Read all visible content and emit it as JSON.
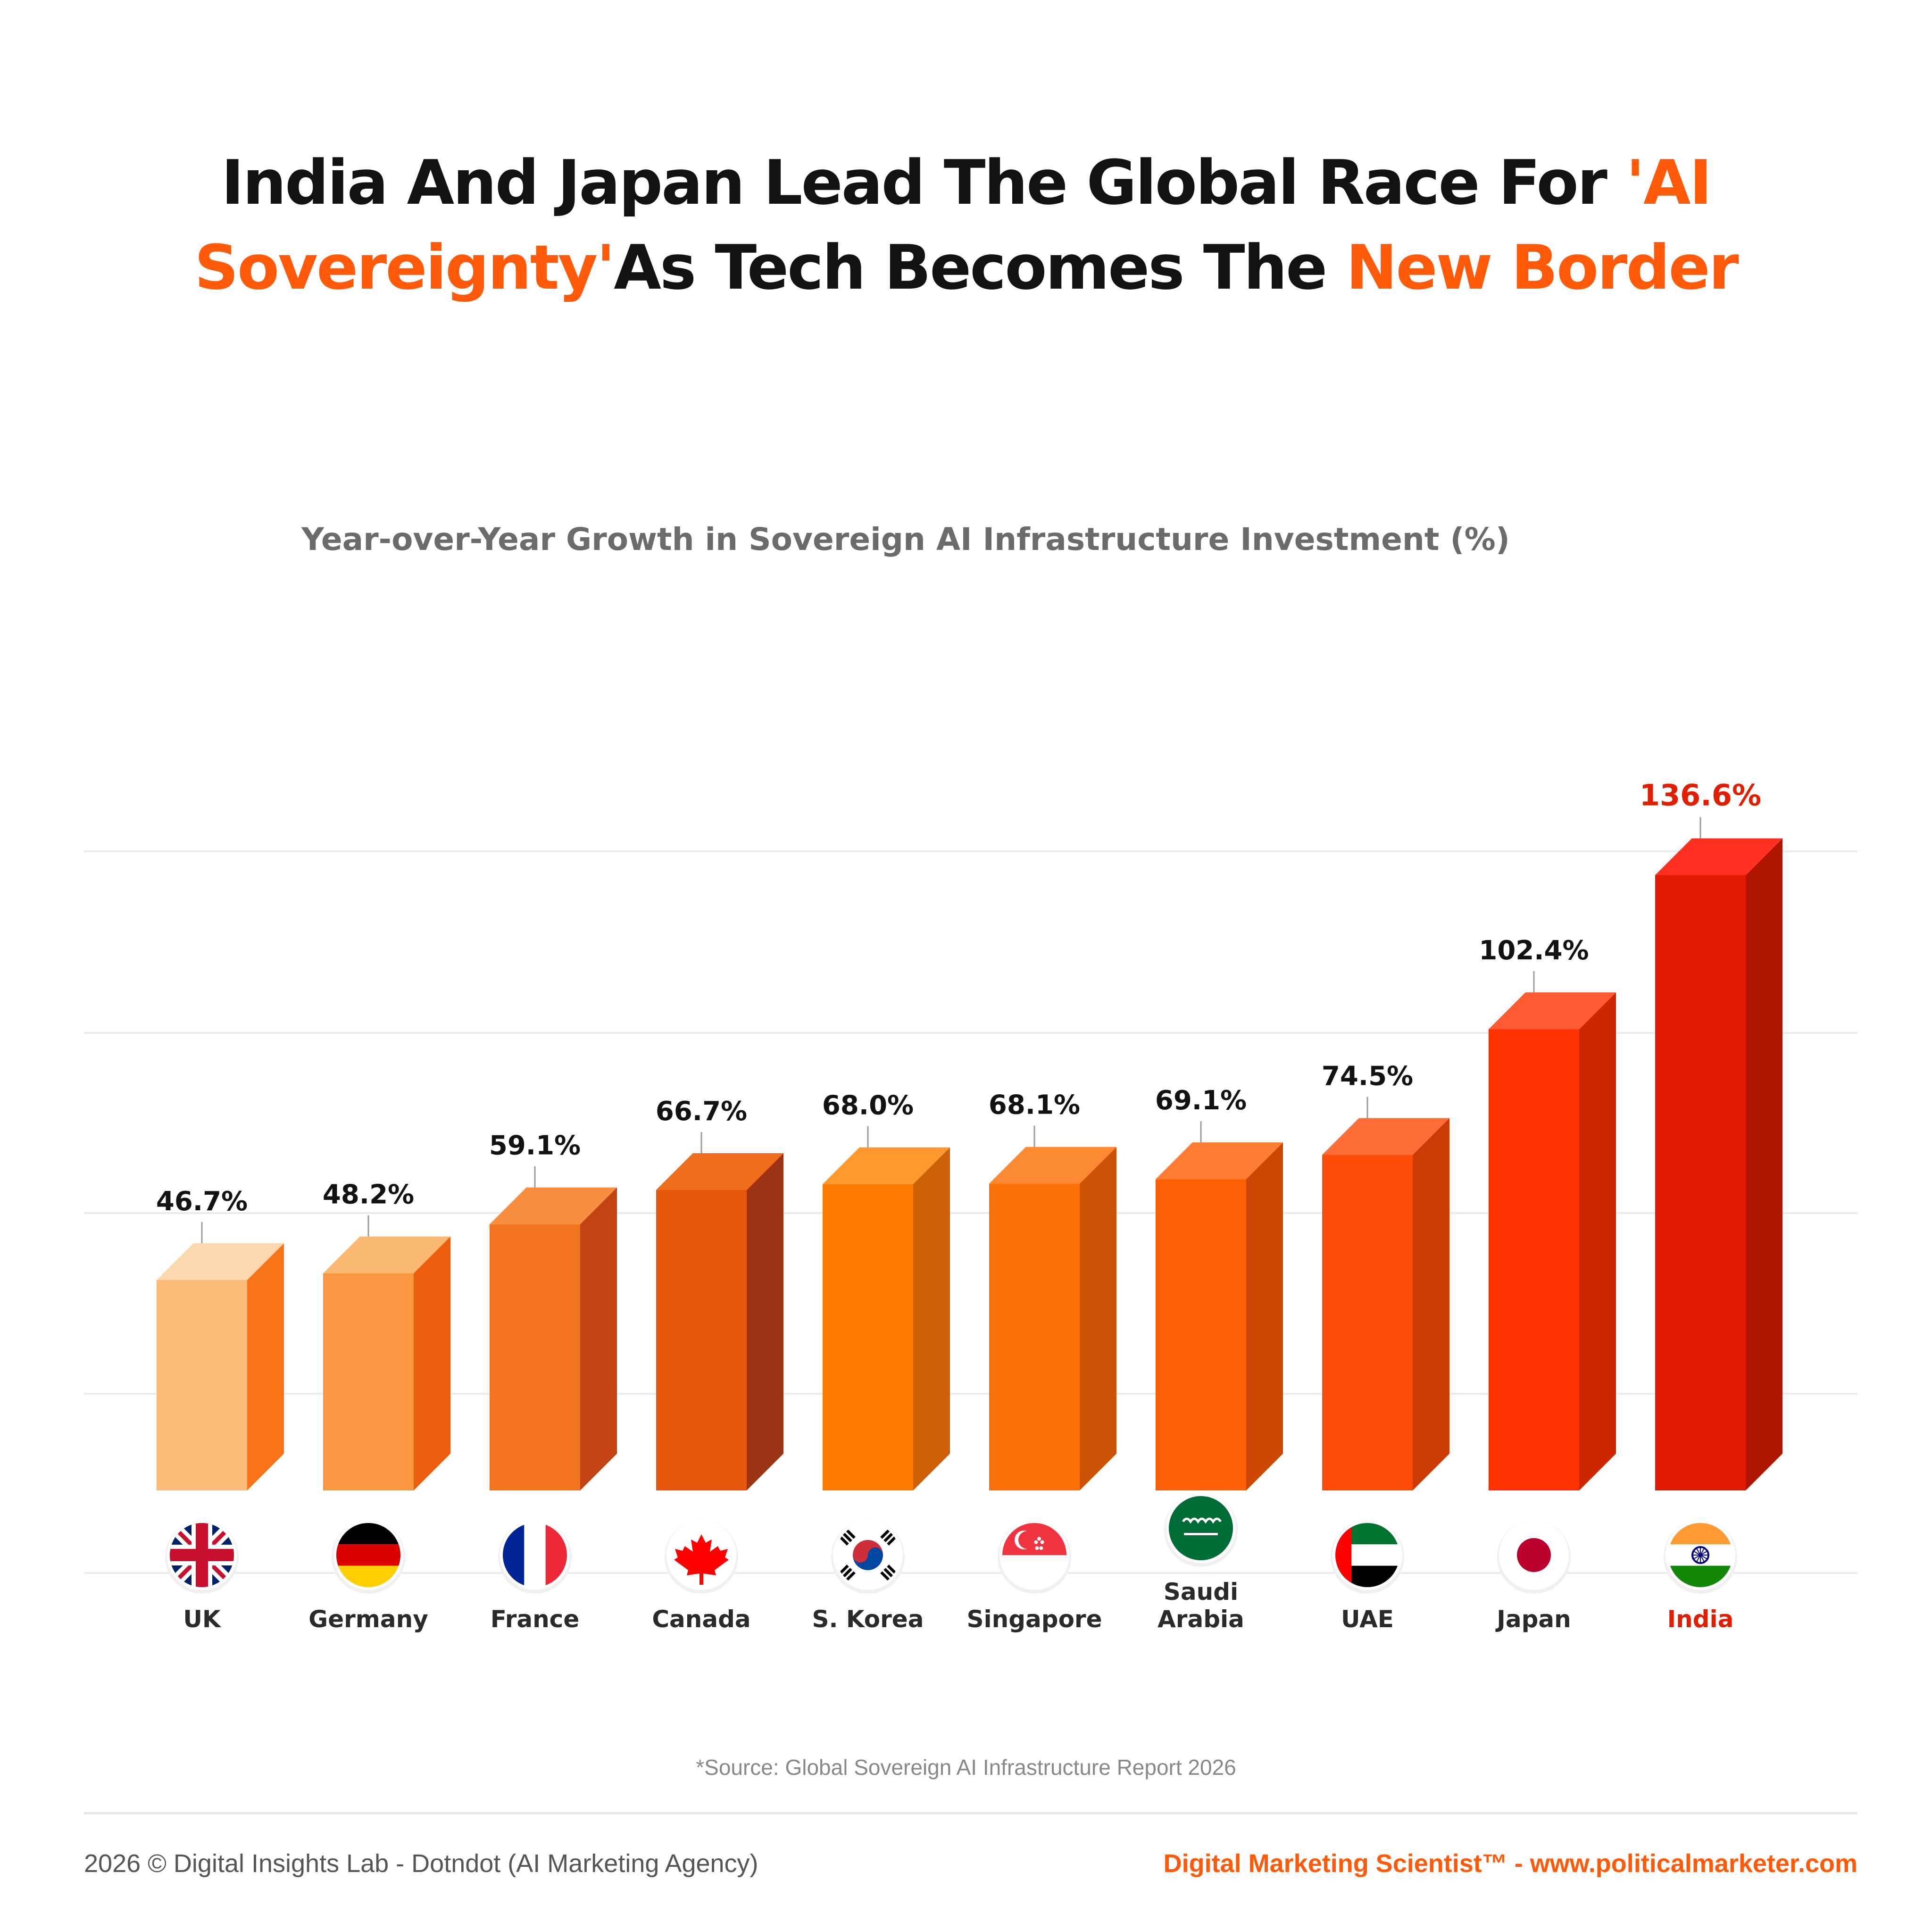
{
  "headline": {
    "line1_text": "India And Japan Lead The Global Race For ",
    "line1_highlight": "'AI",
    "line2_highlight": "Sovereignty'",
    "line2_text": "As Tech Becomes The ",
    "line2_highlight_end": "New Border"
  },
  "source": "*Source: Global Sovereign AI Infrastructure Report 2026",
  "footer": {
    "left": "2026 © Digital Insights Lab - Dotndot (AI Marketing Agency)",
    "right": "Digital Marketing Scientist™ - www.politicalmarketer.com"
  },
  "colors": {
    "accent": "#ff5a0a",
    "india_label": "#e01e00",
    "title_text": "#121212"
  },
  "chart_data": {
    "type": "bar",
    "title": "Year-over-Year Growth in Sovereign AI Infrastructure Investment (%)",
    "xlabel": "",
    "ylabel": "",
    "ylim": [
      0,
      140
    ],
    "grid": true,
    "categories": [
      "UK",
      "Germany",
      "France",
      "Canada",
      "S. Korea",
      "Singapore",
      "Saudi\nArabia",
      "UAE",
      "Japan",
      "India"
    ],
    "values": [
      46.7,
      48.2,
      59.1,
      66.7,
      68.0,
      68.1,
      69.1,
      74.5,
      102.4,
      136.6
    ],
    "value_labels": [
      "46.7%",
      "48.2%",
      "59.1%",
      "66.7%",
      "68.0%",
      "68.1%",
      "69.1%",
      "74.5%",
      "102.4%",
      "136.6%"
    ],
    "flag_icons": [
      "uk-flag-icon",
      "germany-flag-icon",
      "france-flag-icon",
      "canada-flag-icon",
      "south-korea-flag-icon",
      "singapore-flag-icon",
      "saudi-arabia-flag-icon",
      "uae-flag-icon",
      "japan-flag-icon",
      "india-flag-icon"
    ],
    "bar_colors": [
      {
        "front": "#fbbb78",
        "side": "#f97518",
        "top": "#fdd8ae"
      },
      {
        "front": "#f9963f",
        "side": "#ec5e0e",
        "top": "#fbb870"
      },
      {
        "front": "#f3741f",
        "side": "#c44312",
        "top": "#f78e40"
      },
      {
        "front": "#e8560e",
        "side": "#9b3415",
        "top": "#ef6d1c"
      },
      {
        "front": "#ff7a00",
        "side": "#cd5f07",
        "top": "#fe9930"
      },
      {
        "front": "#fd7008",
        "side": "#cd5406",
        "top": "#fd8832"
      },
      {
        "front": "#fd5f04",
        "side": "#cc4604",
        "top": "#fd7e33"
      },
      {
        "front": "#fe4d08",
        "side": "#cc3a06",
        "top": "#fe6c37"
      },
      {
        "front": "#ff3100",
        "side": "#cc2600",
        "top": "#ff5a32"
      },
      {
        "front": "#e01a00",
        "side": "#b01500",
        "top": "#ff3020"
      }
    ],
    "highlight_category": "India"
  }
}
